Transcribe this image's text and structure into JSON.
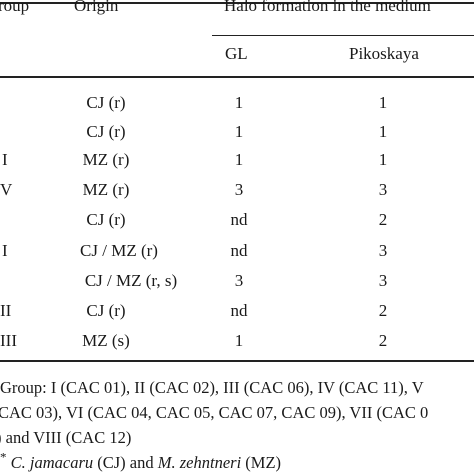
{
  "table": {
    "headers": {
      "group": "roup",
      "origin": "Origin",
      "halo": "Halo formation in the medium",
      "gl": "GL",
      "pikoskaya": "Pikoskaya"
    },
    "rows": [
      {
        "group": "",
        "origin": "CJ (r)",
        "gl": "1",
        "pikoskaya": "1"
      },
      {
        "group": "",
        "origin": "CJ (r)",
        "gl": "1",
        "pikoskaya": "1"
      },
      {
        "group": "I",
        "origin": "MZ (r)",
        "gl": "1",
        "pikoskaya": "1"
      },
      {
        "group": "V",
        "origin": "MZ (r)",
        "gl": "3",
        "pikoskaya": "3"
      },
      {
        "group": "",
        "origin": "CJ (r)",
        "gl": "nd",
        "pikoskaya": "2"
      },
      {
        "group": "I",
        "origin": "CJ / MZ (r)",
        "gl": "nd",
        "pikoskaya": "3"
      },
      {
        "group": "",
        "origin": "CJ / MZ (r, s)",
        "gl": "3",
        "pikoskaya": "3"
      },
      {
        "group": "II",
        "origin": "CJ (r)",
        "gl": "nd",
        "pikoskaya": "2"
      },
      {
        "group": "III",
        "origin": "MZ (s)",
        "gl": "1",
        "pikoskaya": "2"
      }
    ]
  },
  "footnotes": {
    "line1": "Group: I (CAC 01), II (CAC 02), III (CAC 06), IV (CAC 11), V",
    "line2": "CAC 03), VI (CAC 04, CAC 05, CAC 07, CAC 09), VII (CAC 0",
    "line3": ") and VIII (CAC 12)",
    "line4_marker": "*",
    "line4_cj_name": "C. jamacaru",
    "line4_cj_rest": " (CJ) and ",
    "line4_mz_name": "M. zehntneri",
    "line4_mz_rest": " (MZ)"
  }
}
